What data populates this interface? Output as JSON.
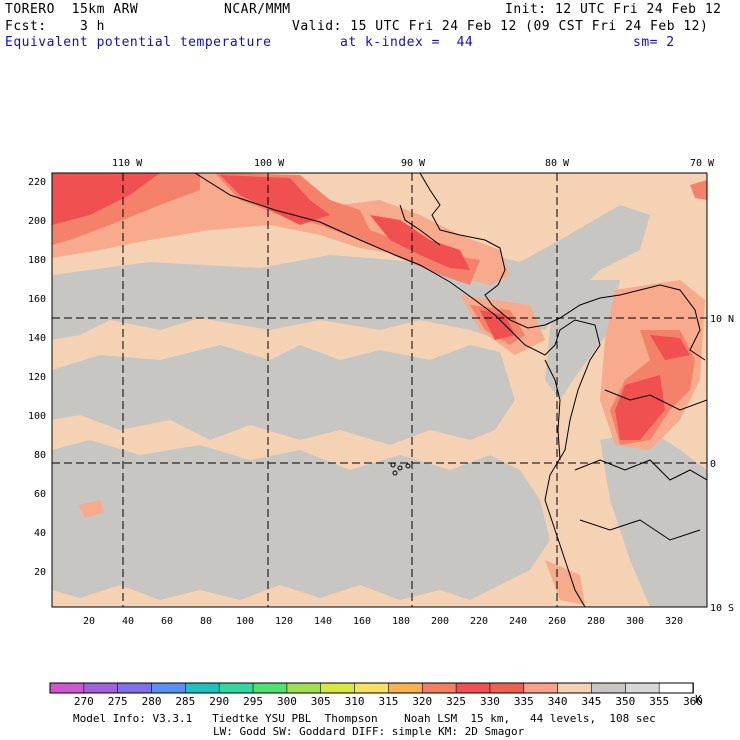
{
  "header": {
    "model": "TORERO  15km ARW",
    "org": "NCAR/MMM",
    "init": "Init: 12 UTC Fri 24 Feb 12",
    "fcst": "Fcst:    3 h",
    "valid": "Valid: 15 UTC Fri 24 Feb 12 (09 CST Fri 24 Feb 12)",
    "field": "Equivalent potential temperature",
    "level": "at k-index =  44",
    "smooth": "sm= 2"
  },
  "map": {
    "lon_labels": [
      "110 W",
      "100 W",
      "90 W",
      "80 W",
      "70 W"
    ],
    "lat_labels": [
      "10 N",
      "0",
      "10 S"
    ],
    "x_ticks": [
      "20",
      "40",
      "60",
      "80",
      "100",
      "120",
      "140",
      "160",
      "180",
      "200",
      "220",
      "240",
      "260",
      "280",
      "300",
      "320"
    ],
    "y_ticks": [
      "220",
      "200",
      "180",
      "160",
      "140",
      "120",
      "100",
      "80",
      "60",
      "40",
      "20"
    ],
    "colors": {
      "bg": "#f5d2b4",
      "gray": "#c8c6c2",
      "salmon": "#f7aa8c",
      "coral": "#f4826a",
      "red": "#f0504a",
      "hot": "#f05a3c"
    }
  },
  "colorbar": {
    "labels": [
      "270",
      "275",
      "280",
      "285",
      "290",
      "295",
      "300",
      "305",
      "310",
      "315",
      "320",
      "325",
      "330",
      "335",
      "340",
      "345",
      "350",
      "355",
      "360"
    ],
    "unit": "K",
    "colors": [
      "#d055d0",
      "#a060d8",
      "#8070e8",
      "#5a90f0",
      "#20c0c0",
      "#30d8a0",
      "#50e070",
      "#a0e050",
      "#d8e840",
      "#f8e060",
      "#f8b050",
      "#f08060",
      "#f05050",
      "#f06050",
      "#f8a088",
      "#f5d2b4",
      "#c8c6c2",
      "#d8d8d8",
      "#ffffff"
    ]
  },
  "footer": {
    "line1": "Model Info: V3.3.1   Tiedtke YSU PBL  Thompson    Noah LSM  15 km,   44 levels,  108 sec",
    "line2": "LW: Godd SW: Goddard DIFF: simple KM: 2D Smagor"
  }
}
